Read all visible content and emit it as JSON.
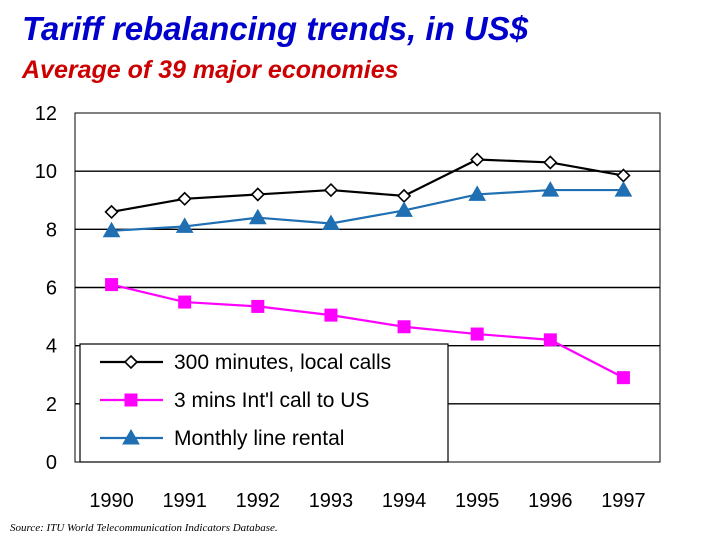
{
  "chart_data": {
    "type": "line",
    "title": "Tariff rebalancing trends, in US$",
    "subtitle": "Average of 39 major economies",
    "categories": [
      "1990",
      "1991",
      "1992",
      "1993",
      "1994",
      "1995",
      "1996",
      "1997"
    ],
    "ylim": [
      0,
      12
    ],
    "yticks": [
      "0",
      "2",
      "4",
      "6",
      "8",
      "10",
      "12"
    ],
    "grid": true,
    "legend_position": "bottom-left",
    "series": [
      {
        "name": "300 minutes, local calls",
        "marker": "diamond",
        "color": "#000000",
        "fill": "#ffffff",
        "values": [
          8.6,
          9.05,
          9.2,
          9.35,
          9.15,
          10.4,
          10.3,
          9.85
        ]
      },
      {
        "name": "3 mins Int'l call to US",
        "marker": "square",
        "color": "#ff00ff",
        "fill": "#ff00ff",
        "values": [
          6.1,
          5.5,
          5.35,
          5.05,
          4.65,
          4.4,
          4.2,
          2.9
        ]
      },
      {
        "name": "Monthly line rental",
        "marker": "triangle",
        "color": "#1f6fb2",
        "fill": "#1f6fb2",
        "values": [
          7.95,
          8.1,
          8.4,
          8.2,
          8.65,
          9.2,
          9.35,
          9.35
        ]
      }
    ],
    "source": "Source: ITU World Telecommunication Indicators Database."
  }
}
